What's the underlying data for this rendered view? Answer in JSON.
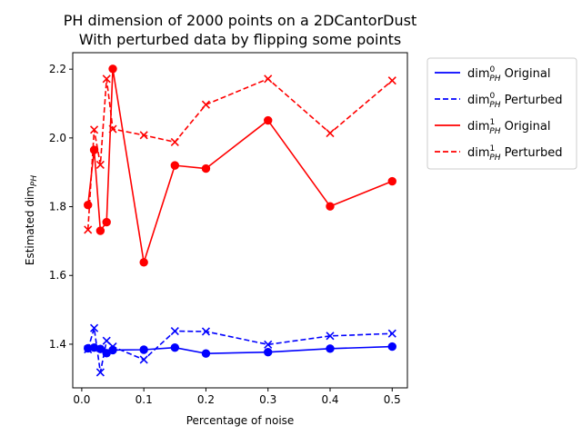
{
  "chart_data": {
    "type": "line",
    "title": "PH dimension of 2000 points on a 2DCantorDust",
    "subtitle": "With perturbed data by flipping some points",
    "xlabel": "Percentage of noise",
    "ylabel": "Estimated dim_PH",
    "xlim": [
      -0.0145,
      0.5245
    ],
    "ylim": [
      1.273,
      2.248
    ],
    "xticks": [
      0.0,
      0.1,
      0.2,
      0.3,
      0.4,
      0.5
    ],
    "xtick_labels": [
      "0.0",
      "0.1",
      "0.2",
      "0.3",
      "0.4",
      "0.5"
    ],
    "yticks": [
      1.4,
      1.6,
      1.8,
      2.0,
      2.2
    ],
    "ytick_labels": [
      "1.4",
      "1.6",
      "1.8",
      "2.0",
      "2.2"
    ],
    "grid": false,
    "legend_position": "outside-right-top",
    "series": [
      {
        "name": "dim⁰PH Original",
        "legend_main": "dim",
        "legend_sup": "0",
        "legend_sub": "PH",
        "legend_suffix": " Original",
        "color": "#0000ff",
        "linestyle": "solid",
        "marker": "circle",
        "x": [
          0.01,
          0.02,
          0.03,
          0.04,
          0.05,
          0.1,
          0.15,
          0.2,
          0.3,
          0.4,
          0.5
        ],
        "y": [
          1.388,
          1.39,
          1.386,
          1.374,
          1.383,
          1.384,
          1.39,
          1.373,
          1.377,
          1.387,
          1.393
        ]
      },
      {
        "name": "dim⁰PH Perturbed",
        "legend_main": "dim",
        "legend_sup": "0",
        "legend_sub": "PH",
        "legend_suffix": " Perturbed",
        "color": "#0000ff",
        "linestyle": "dashed",
        "marker": "x",
        "x": [
          0.01,
          0.02,
          0.03,
          0.04,
          0.05,
          0.1,
          0.15,
          0.2,
          0.3,
          0.4,
          0.5
        ],
        "y": [
          1.385,
          1.447,
          1.318,
          1.41,
          1.393,
          1.355,
          1.438,
          1.437,
          1.399,
          1.424,
          1.431
        ]
      },
      {
        "name": "dim¹PH Original",
        "legend_main": "dim",
        "legend_sup": "1",
        "legend_sub": "PH",
        "legend_suffix": " Original",
        "color": "#ff0000",
        "linestyle": "solid",
        "marker": "circle",
        "x": [
          0.01,
          0.02,
          0.03,
          0.04,
          0.05,
          0.1,
          0.15,
          0.2,
          0.3,
          0.4,
          0.5
        ],
        "y": [
          1.805,
          1.965,
          1.73,
          1.755,
          2.201,
          1.638,
          1.92,
          1.911,
          2.051,
          1.801,
          1.874
        ]
      },
      {
        "name": "dim¹PH Perturbed",
        "legend_main": "dim",
        "legend_sup": "1",
        "legend_sub": "PH",
        "legend_suffix": " Perturbed",
        "color": "#ff0000",
        "linestyle": "dashed",
        "marker": "x",
        "x": [
          0.01,
          0.02,
          0.03,
          0.04,
          0.05,
          0.1,
          0.15,
          0.2,
          0.3,
          0.4,
          0.5
        ],
        "y": [
          1.733,
          2.024,
          1.922,
          2.172,
          2.026,
          2.008,
          1.988,
          2.097,
          2.172,
          2.014,
          2.167
        ]
      }
    ]
  }
}
